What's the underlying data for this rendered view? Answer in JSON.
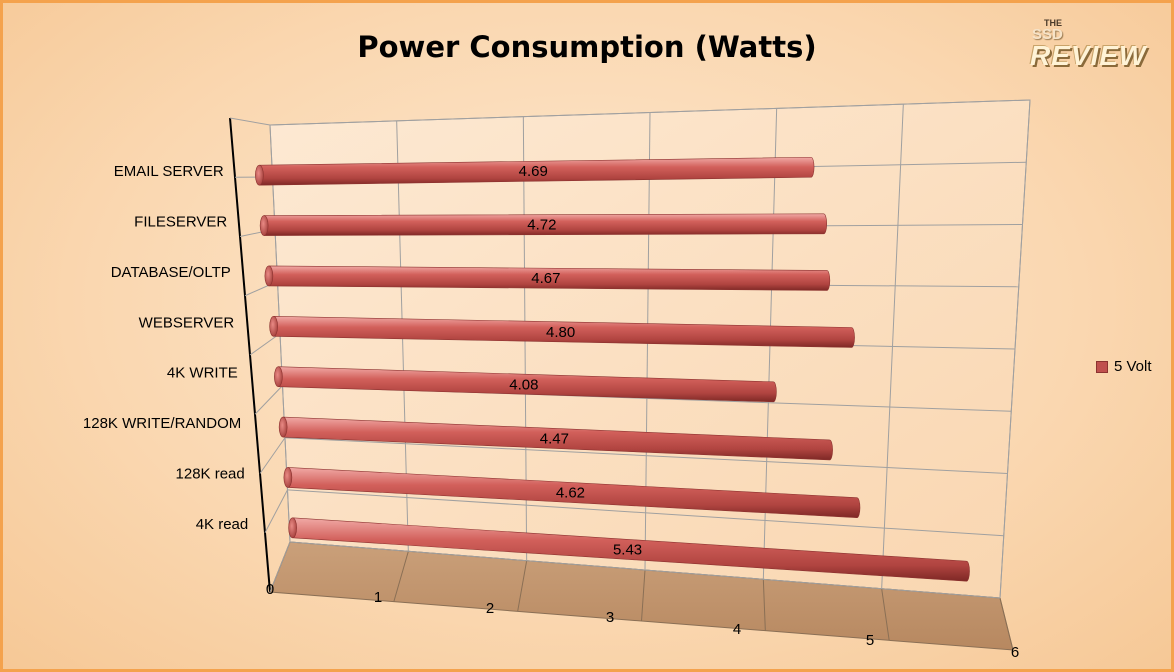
{
  "colors": {
    "bar": "#c0504d",
    "frame": "#f4a24d",
    "background": "#fbe3c7"
  },
  "logo": {
    "line1": "THE",
    "line2": "SSD",
    "line3": "REVIEW"
  },
  "chart_data": {
    "type": "bar",
    "orientation": "horizontal",
    "style": "3d-cylinder",
    "title": "Power Consumption (Watts)",
    "categories": [
      "EMAIL SERVER",
      "FILESERVER",
      "DATABASE/OLTP",
      "WEBSERVER",
      "4K WRITE",
      "128K WRITE/RANDOM",
      "128K read",
      "4K read"
    ],
    "series": [
      {
        "name": "5 Volt",
        "values": [
          4.69,
          4.72,
          4.67,
          4.8,
          4.08,
          4.47,
          4.62,
          5.43
        ]
      }
    ],
    "value_labels": [
      "4.69",
      "4.72",
      "4.67",
      "4.80",
      "4.08",
      "4.47",
      "4.62",
      "5.43"
    ],
    "x_ticks": [
      "0",
      "1",
      "2",
      "3",
      "4",
      "5",
      "6"
    ],
    "xlim": [
      0,
      6
    ],
    "grid": true,
    "legend_position": "right"
  }
}
